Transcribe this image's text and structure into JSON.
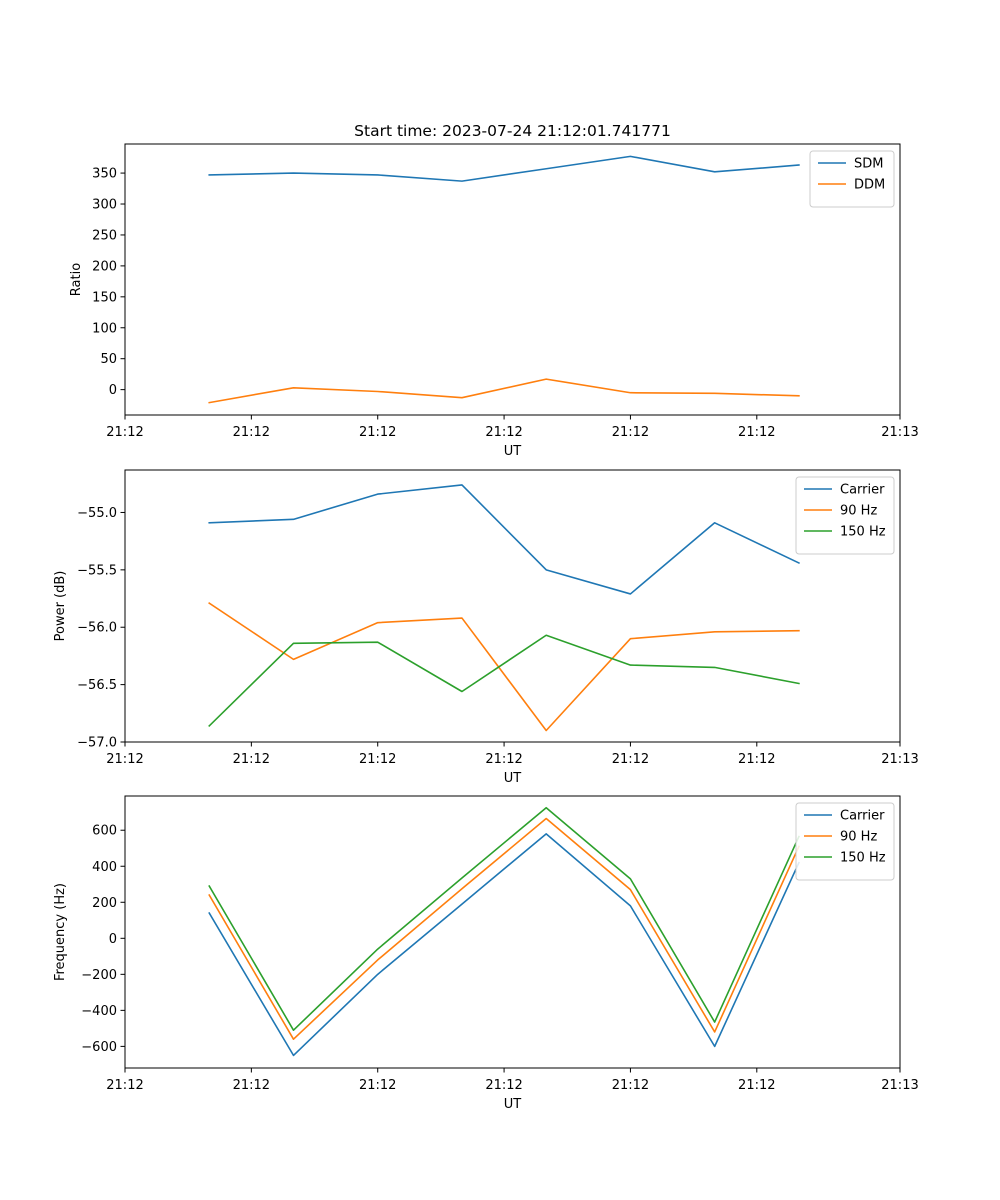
{
  "chart_data": [
    {
      "type": "line",
      "title": "Start time: 2023-07-24 21:12:01.741771",
      "xlabel": "UT",
      "ylabel": "Ratio",
      "x": [
        1,
        2,
        3,
        4,
        5,
        6,
        7,
        8
      ],
      "xlim": [
        0,
        9.2
      ],
      "xticks": [
        0,
        1.5,
        3,
        4.5,
        6,
        7.5,
        9.2
      ],
      "xtick_labels": [
        "21:12",
        "21:12",
        "21:12",
        "21:12",
        "21:12",
        "21:12",
        "21:13"
      ],
      "ylim": [
        -41,
        397
      ],
      "yticks": [
        0,
        50,
        100,
        150,
        200,
        250,
        300,
        350
      ],
      "ytick_labels": [
        "0",
        "50",
        "100",
        "150",
        "200",
        "250",
        "300",
        "350"
      ],
      "legend_loc": "top-right",
      "series": [
        {
          "name": "SDM",
          "color": "#1f77b4",
          "values": [
            347,
            350,
            347,
            337,
            357,
            377,
            352,
            363
          ]
        },
        {
          "name": "DDM",
          "color": "#ff7f0e",
          "values": [
            -21,
            3,
            -3,
            -13,
            17,
            -5,
            -6,
            -10
          ]
        }
      ]
    },
    {
      "type": "line",
      "title": "",
      "xlabel": "UT",
      "ylabel": "Power (dB)",
      "x": [
        1,
        2,
        3,
        4,
        5,
        6,
        7,
        8
      ],
      "xlim": [
        0,
        9.2
      ],
      "xticks": [
        0,
        1.5,
        3,
        4.5,
        6,
        7.5,
        9.2
      ],
      "xtick_labels": [
        "21:12",
        "21:12",
        "21:12",
        "21:12",
        "21:12",
        "21:12",
        "21:13"
      ],
      "ylim": [
        -57.0,
        -54.63
      ],
      "yticks": [
        -57.0,
        -56.5,
        -56.0,
        -55.5,
        -55.0
      ],
      "ytick_labels": [
        "−57.0",
        "−56.5",
        "−56.0",
        "−55.5",
        "−55.0"
      ],
      "legend_loc": "top-right",
      "series": [
        {
          "name": "Carrier",
          "color": "#1f77b4",
          "values": [
            -55.09,
            -55.06,
            -54.84,
            -54.76,
            -55.5,
            -55.71,
            -55.09,
            -55.44
          ]
        },
        {
          "name": "90 Hz",
          "color": "#ff7f0e",
          "values": [
            -55.79,
            -56.28,
            -55.96,
            -55.92,
            -56.9,
            -56.1,
            -56.04,
            -56.03
          ]
        },
        {
          "name": "150 Hz",
          "color": "#2ca02c",
          "values": [
            -56.86,
            -56.14,
            -56.13,
            -56.56,
            -56.07,
            -56.33,
            -56.35,
            -56.49
          ]
        }
      ]
    },
    {
      "type": "line",
      "title": "",
      "xlabel": "UT",
      "ylabel": "Frequency (Hz)",
      "x": [
        1,
        2,
        3,
        4,
        5,
        6,
        7,
        8
      ],
      "xlim": [
        0,
        9.2
      ],
      "xticks": [
        0,
        1.5,
        3,
        4.5,
        6,
        7.5,
        9.2
      ],
      "xtick_labels": [
        "21:12",
        "21:12",
        "21:12",
        "21:12",
        "21:12",
        "21:12",
        "21:13"
      ],
      "ylim": [
        -720,
        790
      ],
      "yticks": [
        -600,
        -400,
        -200,
        0,
        200,
        400,
        600
      ],
      "ytick_labels": [
        "−600",
        "−400",
        "−200",
        "0",
        "200",
        "400",
        "600"
      ],
      "legend_loc": "top-right",
      "series": [
        {
          "name": "Carrier",
          "color": "#1f77b4",
          "values": [
            140,
            -650,
            -200,
            190,
            580,
            180,
            -600,
            420
          ]
        },
        {
          "name": "90 Hz",
          "color": "#ff7f0e",
          "values": [
            240,
            -560,
            -120,
            275,
            665,
            270,
            -520,
            510
          ]
        },
        {
          "name": "150 Hz",
          "color": "#2ca02c",
          "values": [
            290,
            -510,
            -60,
            335,
            725,
            330,
            -465,
            565
          ]
        }
      ]
    }
  ]
}
